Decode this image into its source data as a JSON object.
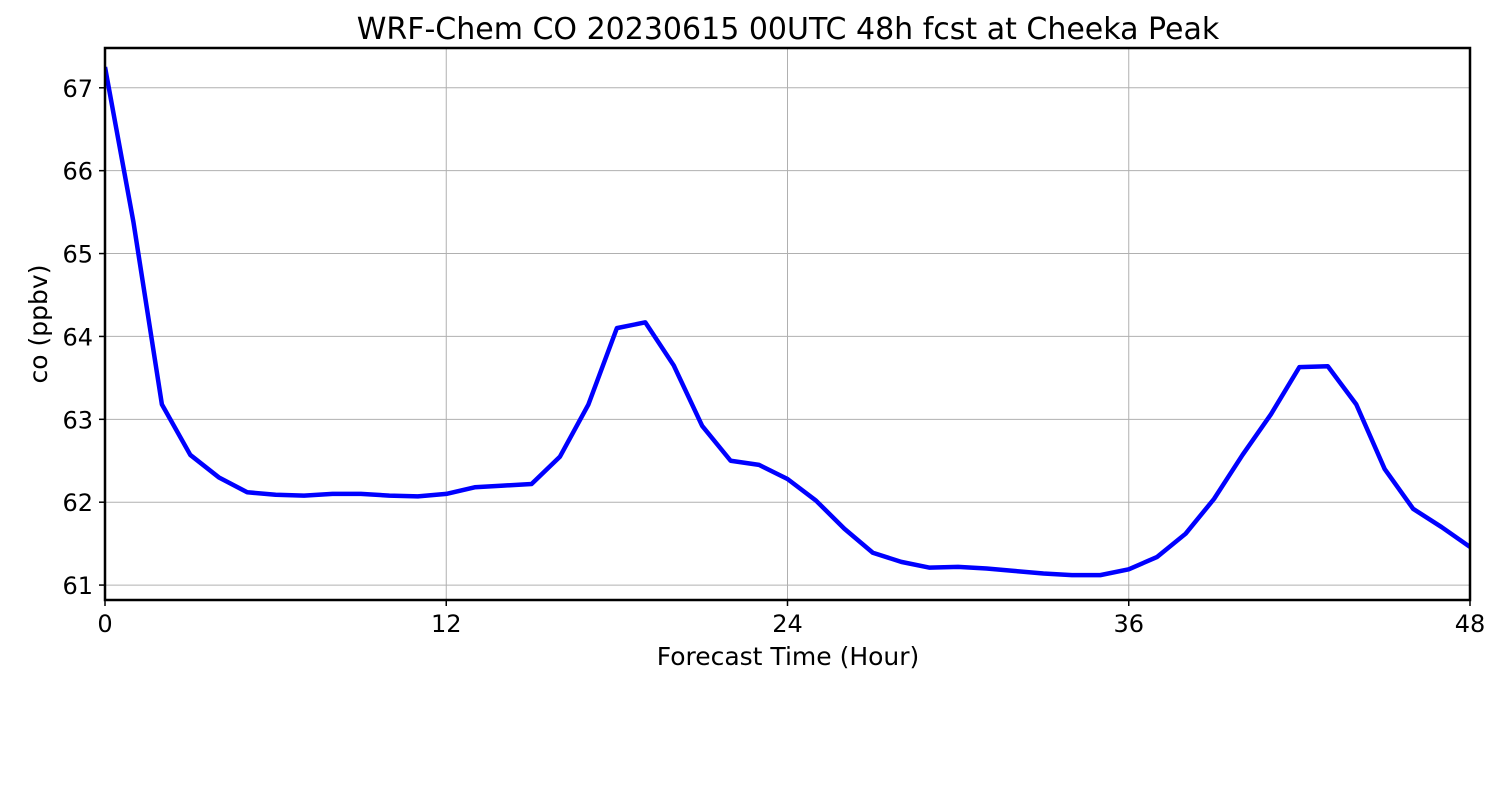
{
  "chart_data": {
    "type": "line",
    "title": "WRF-Chem CO  20230615 00UTC 48h fcst at Cheeka Peak",
    "xlabel": "Forecast Time (Hour)",
    "ylabel": "co  (ppbv)",
    "xlim": [
      0,
      48
    ],
    "ylim": [
      60.82,
      67.48
    ],
    "xticks": [
      0,
      12,
      24,
      36,
      48
    ],
    "yticks": [
      61,
      62,
      63,
      64,
      65,
      66,
      67
    ],
    "grid": true,
    "line_color": "#0000ff",
    "series": [
      {
        "x": [
          0,
          1,
          2,
          3,
          4,
          5,
          6,
          7,
          8,
          9,
          10,
          11,
          12,
          13,
          14,
          15,
          16,
          17,
          18,
          19,
          20,
          21,
          22,
          23,
          24,
          25,
          26,
          27,
          28,
          29,
          30,
          31,
          32,
          33,
          34,
          35,
          36,
          37,
          38,
          39,
          40,
          41,
          42,
          43,
          44,
          45,
          46,
          47,
          48
        ],
        "values": [
          67.25,
          65.38,
          63.18,
          62.57,
          62.3,
          62.12,
          62.09,
          62.08,
          62.1,
          62.1,
          62.08,
          62.07,
          62.1,
          62.18,
          62.2,
          62.22,
          62.55,
          63.18,
          64.1,
          64.17,
          63.65,
          62.92,
          62.5,
          62.45,
          62.28,
          62.02,
          61.68,
          61.39,
          61.28,
          61.21,
          61.22,
          61.2,
          61.17,
          61.14,
          61.12,
          61.12,
          61.19,
          61.34,
          61.62,
          62.04,
          62.57,
          63.06,
          63.63,
          63.64,
          63.18,
          62.4,
          61.92,
          61.7,
          61.46
        ]
      }
    ]
  }
}
